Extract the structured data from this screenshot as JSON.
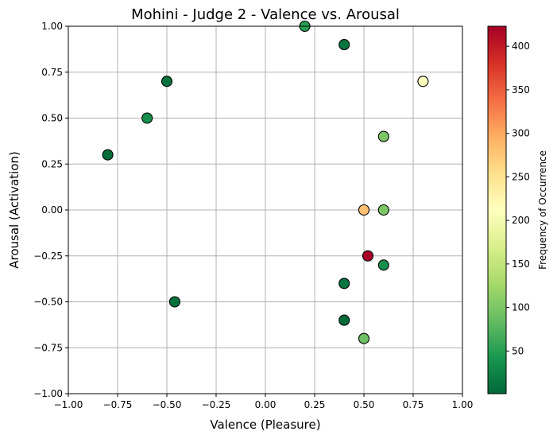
{
  "chart_data": {
    "type": "scatter",
    "title": "Mohini - Judge 2 - Valence vs. Arousal",
    "xlabel": "Valence (Pleasure)",
    "ylabel": "Arousal (Activation)",
    "xlim": [
      -1.0,
      1.0
    ],
    "ylim": [
      -1.0,
      1.0
    ],
    "xticks": [
      -1.0,
      -0.75,
      -0.5,
      -0.25,
      0.0,
      0.25,
      0.5,
      0.75,
      1.0
    ],
    "yticks": [
      -1.0,
      -0.75,
      -0.5,
      -0.25,
      0.0,
      0.25,
      0.5,
      0.75,
      1.0
    ],
    "xtick_labels": [
      "−1.00",
      "−0.75",
      "−0.50",
      "−0.25",
      "0.00",
      "0.25",
      "0.50",
      "0.75",
      "1.00"
    ],
    "ytick_labels": [
      "−1.00",
      "−0.75",
      "−0.50",
      "−0.25",
      "0.00",
      "0.25",
      "0.50",
      "0.75",
      "1.00"
    ],
    "grid": true,
    "colormap": "RdYlGn_r",
    "colorbar": {
      "label": "Frequency of Occurrence",
      "min": 1,
      "max": 423,
      "ticks": [
        50,
        100,
        150,
        200,
        250,
        300,
        350,
        400
      ],
      "tick_labels": [
        "50",
        "100",
        "150",
        "200",
        "250",
        "300",
        "350",
        "400"
      ]
    },
    "points": [
      {
        "x": 0.2,
        "y": 1.0,
        "value": 50
      },
      {
        "x": 0.4,
        "y": 0.9,
        "value": 12
      },
      {
        "x": -0.5,
        "y": 0.7,
        "value": 10
      },
      {
        "x": 0.8,
        "y": 0.7,
        "value": 210
      },
      {
        "x": -0.6,
        "y": 0.5,
        "value": 35
      },
      {
        "x": 0.6,
        "y": 0.4,
        "value": 100
      },
      {
        "x": -0.8,
        "y": 0.3,
        "value": 5
      },
      {
        "x": 0.5,
        "y": 0.0,
        "value": 280
      },
      {
        "x": 0.6,
        "y": 0.0,
        "value": 100
      },
      {
        "x": 0.52,
        "y": -0.25,
        "value": 423
      },
      {
        "x": 0.6,
        "y": -0.3,
        "value": 35
      },
      {
        "x": 0.4,
        "y": -0.4,
        "value": 12
      },
      {
        "x": -0.46,
        "y": -0.5,
        "value": 10
      },
      {
        "x": 0.4,
        "y": -0.6,
        "value": 5
      },
      {
        "x": 0.5,
        "y": -0.7,
        "value": 90
      }
    ]
  }
}
